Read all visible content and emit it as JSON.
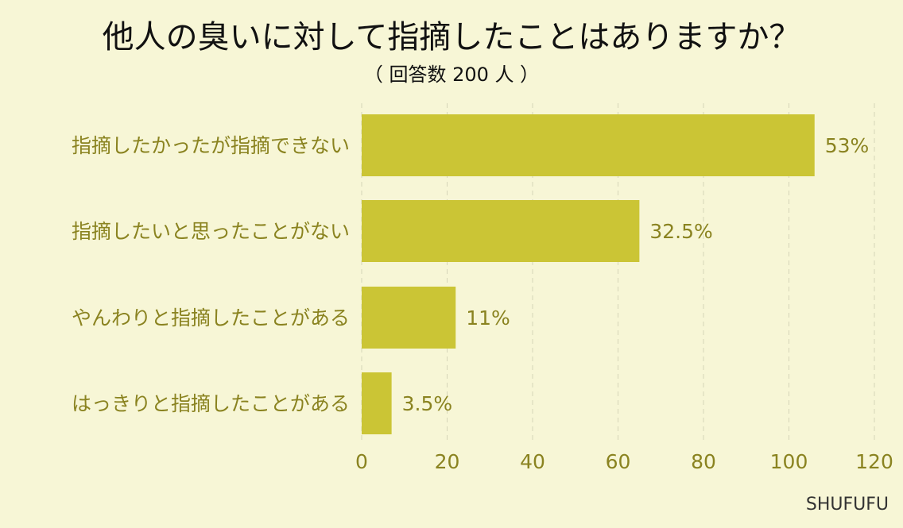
{
  "chart_data": {
    "type": "bar",
    "orientation": "horizontal",
    "title": "他人の臭いに対して指摘したことはありますか？",
    "subtitle": "（ 回答数 200 人 ）",
    "categories": [
      "指摘したかったが指摘できない",
      "指摘したいと思ったことがない",
      "やんわりと指摘したことがある",
      "はっきりと指摘したことがある"
    ],
    "values": [
      106,
      65,
      22,
      7
    ],
    "value_labels": [
      "53%",
      "32.5%",
      "11%",
      "3.5%"
    ],
    "xlim": [
      0,
      120
    ],
    "xticks": [
      0,
      20,
      40,
      60,
      80,
      100,
      120
    ],
    "grid": true
  },
  "brand": "SHUFUFU",
  "colors": {
    "background": "#f7f6d6",
    "bar": "#cbc535",
    "label": "#8a8320",
    "title": "#111111",
    "grid": "#d6d5b8"
  }
}
